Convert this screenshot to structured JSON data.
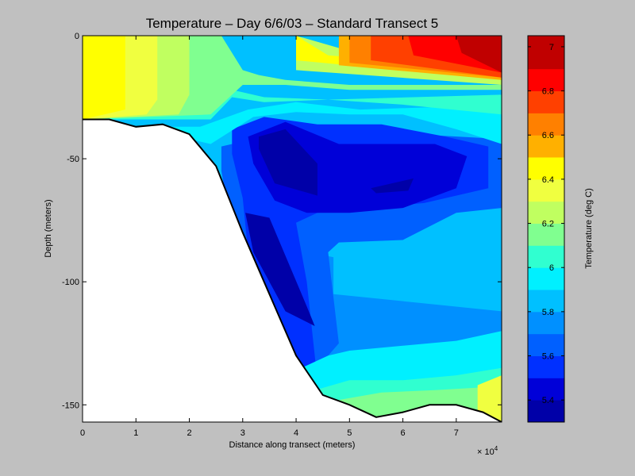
{
  "chart_data": {
    "type": "heatmap",
    "title": "Temperature – Day 6/6/03 – Standard Transect 5",
    "xlabel": "Distance along transect (meters)",
    "ylabel": "Depth (meters)",
    "x_exponent_label": "× 10",
    "x_exponent_power": "4",
    "x_ticks": [
      "0",
      "1",
      "2",
      "3",
      "4",
      "5",
      "6",
      "7"
    ],
    "y_ticks": [
      "0",
      "-50",
      "-100",
      "-150"
    ],
    "x_tick_values": [
      0,
      10000,
      20000,
      30000,
      40000,
      50000,
      60000,
      70000
    ],
    "y_tick_values": [
      0,
      -50,
      -100,
      -150
    ],
    "xlim": [
      0,
      78500
    ],
    "ylim": [
      -157,
      0
    ],
    "colorbar": {
      "label": "Temperature (deg C)",
      "ticks": [
        "5.4",
        "5.6",
        "5.8",
        "6",
        "6.2",
        "6.4",
        "6.6",
        "6.8",
        "7"
      ],
      "tick_values": [
        5.4,
        5.6,
        5.8,
        6.0,
        6.2,
        6.4,
        6.6,
        6.8,
        7.0
      ],
      "range": [
        5.3,
        7.05
      ],
      "levels": [
        5.3,
        5.4,
        5.5,
        5.6,
        5.7,
        5.8,
        5.9,
        6.0,
        6.1,
        6.2,
        6.3,
        6.4,
        6.5,
        6.6,
        6.7,
        6.8,
        6.9,
        7.05
      ],
      "colors": [
        "#0000a8",
        "#0000d8",
        "#0030ff",
        "#0060ff",
        "#0090ff",
        "#00c0ff",
        "#00f0ff",
        "#30ffd0",
        "#80ff90",
        "#c0ff60",
        "#f0ff40",
        "#ffff00",
        "#ffb000",
        "#ff8000",
        "#ff4000",
        "#ff0000",
        "#c00000"
      ]
    },
    "bottom_profile": {
      "x": [
        0,
        5000,
        10000,
        15000,
        20000,
        25000,
        30000,
        35000,
        40000,
        45000,
        50000,
        55000,
        60000,
        65000,
        70000,
        75000,
        78500
      ],
      "depth": [
        -34,
        -34,
        -37,
        -36,
        -40,
        -53,
        -80,
        -105,
        -130,
        -146,
        -150,
        -155,
        -153,
        -150,
        -150,
        -153,
        -157
      ]
    },
    "regions": [
      {
        "temp": 5.85,
        "x": [
          0,
          78500,
          78500,
          0
        ],
        "depth": [
          0,
          0,
          -157,
          -157
        ]
      },
      {
        "temp": 5.75,
        "x": [
          36000,
          47000,
          47000,
          78500,
          78500,
          36000
        ],
        "depth": [
          -85,
          -90,
          -105,
          -112,
          -155,
          -155
        ]
      },
      {
        "temp": 5.65,
        "x": [
          26000,
          36000,
          50000,
          62000,
          78500,
          78500,
          70000,
          60000,
          48000,
          46000,
          48000,
          42000,
          40000,
          38000,
          32000,
          26000
        ],
        "depth": [
          -45,
          -40,
          -40,
          -40,
          -42,
          -70,
          -72,
          -83,
          -84,
          -88,
          -125,
          -140,
          -143,
          -145,
          -130,
          -55
        ]
      },
      {
        "temp": 5.55,
        "x": [
          28000,
          34000,
          44000,
          56000,
          68000,
          76000,
          76000,
          64000,
          54000,
          44000,
          40000,
          42000,
          44000,
          38000,
          32000,
          30000,
          28000
        ],
        "depth": [
          -38,
          -33,
          -36,
          -36,
          -41,
          -45,
          -62,
          -68,
          -70,
          -72,
          -76,
          -100,
          -140,
          -145,
          -110,
          -66,
          -48
        ]
      },
      {
        "temp": 5.45,
        "x": [
          31000,
          38000,
          48000,
          58000,
          66000,
          72000,
          70000,
          60000,
          50000,
          42000,
          36000,
          32000
        ],
        "depth": [
          -41,
          -35,
          -44,
          -44,
          -44,
          -49,
          -62,
          -70,
          -72,
          -72,
          -67,
          -52
        ]
      },
      {
        "temp": 5.35,
        "x": [
          33000,
          38000,
          44000,
          44000,
          36000,
          33000
        ],
        "depth": [
          -41,
          -38,
          -52,
          -65,
          -60,
          -46
        ]
      },
      {
        "temp": 5.35,
        "x": [
          54000,
          62000,
          61000,
          55000
        ],
        "depth": [
          -62,
          -58,
          -63,
          -64
        ]
      },
      {
        "temp": 5.35,
        "x": [
          30500,
          35000,
          42000,
          43500,
          38000,
          32000
        ],
        "depth": [
          -72,
          -74,
          -110,
          -118,
          -112,
          -88
        ]
      },
      {
        "temp": 5.95,
        "x": [
          10000,
          22000,
          31000,
          40000,
          52000,
          66000,
          78500,
          78500,
          70000,
          60000,
          50000,
          40000,
          32000,
          24000,
          10000
        ],
        "depth": [
          -37,
          -37,
          -30,
          -27,
          -30,
          -29,
          -30,
          -44,
          -38,
          -32,
          -32,
          -31,
          -33,
          -44,
          -37
        ]
      },
      {
        "temp": 5.95,
        "x": [
          40000,
          46000,
          50000,
          60000,
          70000,
          78500,
          78500,
          40000
        ],
        "depth": [
          -136,
          -130,
          -128,
          -126,
          -124,
          -120,
          -157,
          -157
        ]
      },
      {
        "temp": 6.05,
        "x": [
          42000,
          50000,
          60000,
          70000,
          78500,
          78500,
          42000
        ],
        "depth": [
          -145,
          -140,
          -140,
          -138,
          -135,
          -157,
          -157
        ]
      },
      {
        "temp": 6.05,
        "x": [
          0,
          24000,
          28000,
          34000,
          46000,
          78500,
          78500,
          60000,
          46000,
          34000,
          28000,
          24000,
          0
        ],
        "depth": [
          0,
          0,
          -22,
          -25,
          -26,
          -24,
          -32,
          -28,
          -26,
          -27,
          -25,
          -34,
          -34
        ]
      },
      {
        "temp": 6.15,
        "x": [
          48000,
          56000,
          66000,
          74000,
          78500,
          78500,
          48000
        ],
        "depth": [
          -148,
          -145,
          -144,
          -143,
          -140,
          -157,
          -157
        ]
      },
      {
        "temp": 6.15,
        "x": [
          0,
          26000,
          30000,
          33000,
          38000,
          50000,
          78500,
          78500,
          50000,
          38000,
          30000,
          24000,
          0
        ],
        "depth": [
          0,
          0,
          -14,
          -16,
          -18,
          -20,
          -20,
          -22,
          -22,
          -20,
          -20,
          -32,
          -34
        ]
      },
      {
        "temp": 6.25,
        "x": [
          0,
          20000,
          20000,
          18000,
          0
        ],
        "depth": [
          0,
          0,
          -24,
          -32,
          -34
        ]
      },
      {
        "temp": 6.25,
        "x": [
          40000,
          48000,
          78500,
          78500,
          40000
        ],
        "depth": [
          0,
          -5,
          -12,
          -20,
          -14
        ]
      },
      {
        "temp": 6.35,
        "x": [
          0,
          14000,
          14000,
          12000,
          0
        ],
        "depth": [
          0,
          0,
          -26,
          -32,
          -34
        ]
      },
      {
        "temp": 6.35,
        "x": [
          74000,
          78500,
          78500,
          74000
        ],
        "depth": [
          -142,
          -138,
          -157,
          -157
        ]
      },
      {
        "temp": 6.45,
        "x": [
          0,
          8000,
          8000,
          0
        ],
        "depth": [
          0,
          0,
          -30,
          -34
        ]
      },
      {
        "temp": 6.45,
        "x": [
          40000,
          46000,
          78500,
          78500,
          40000
        ],
        "depth": [
          0,
          -8,
          -14,
          -18,
          -10
        ]
      },
      {
        "temp": 6.55,
        "x": [
          48000,
          78500,
          78500,
          48000
        ],
        "depth": [
          0,
          0,
          -18,
          -12
        ]
      },
      {
        "temp": 6.65,
        "x": [
          50000,
          78500,
          78500,
          50000
        ],
        "depth": [
          0,
          0,
          -17,
          -11
        ]
      },
      {
        "temp": 6.75,
        "x": [
          54000,
          78500,
          78500,
          54000
        ],
        "depth": [
          0,
          0,
          -17,
          -10
        ]
      },
      {
        "temp": 6.85,
        "x": [
          61000,
          78500,
          78500,
          62000
        ],
        "depth": [
          0,
          0,
          -15,
          -8
        ]
      },
      {
        "temp": 6.95,
        "x": [
          70000,
          78500,
          78500,
          71000
        ],
        "depth": [
          0,
          0,
          -15,
          -7
        ]
      }
    ]
  }
}
